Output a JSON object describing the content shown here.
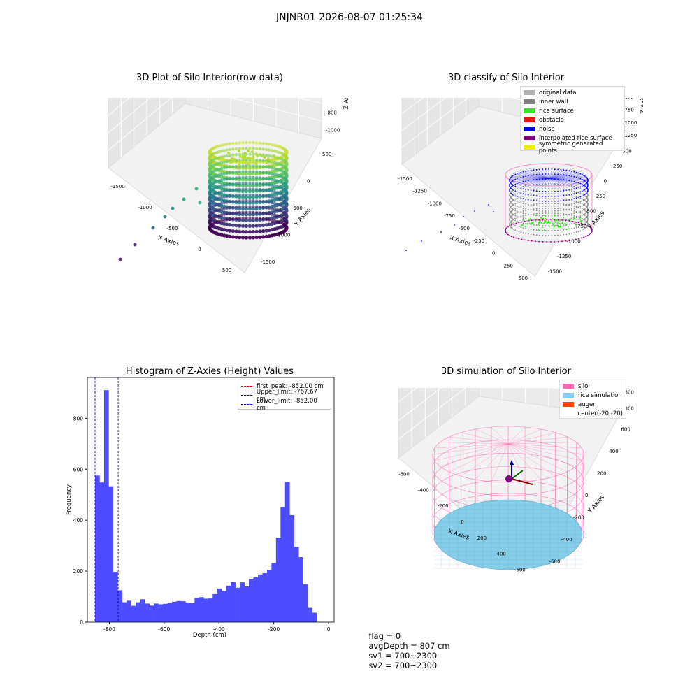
{
  "suptitle": "JNJNR01 2026-08-07 01:25:34",
  "panels": {
    "raw": {
      "title": "3D Plot of Silo Interior(row data)",
      "xlabel": "X Axies",
      "ylabel": "Y Axies",
      "zlabel": "Z Axies (Depth)",
      "x_ticks": [
        "-1500",
        "-1000",
        "-500",
        "0",
        "500"
      ],
      "y_ticks": [
        "500",
        "0",
        "-500",
        "-1000",
        "-1500"
      ],
      "z_ticks": [
        "0",
        "-200",
        "-400",
        "-600",
        "-800",
        "-1000"
      ]
    },
    "classify": {
      "title": "3D classify of Silo Interior",
      "xlabel": "X Axies",
      "ylabel": "Y Axies",
      "zlabel": "Z Axies (Depth)",
      "x_ticks": [
        "-1500",
        "-1250",
        "-1000",
        "-750",
        "-500",
        "-250",
        "0",
        "250",
        "500"
      ],
      "y_ticks": [
        "500",
        "250",
        "0",
        "-250",
        "-500",
        "-750",
        "-1000",
        "-1250",
        "-1500"
      ],
      "z_ticks": [
        "500",
        "250",
        "0",
        "-250",
        "-500",
        "-750",
        "-1000",
        "-1250"
      ],
      "legend": [
        {
          "label": "original data",
          "color": "#b3b3b3"
        },
        {
          "label": "inner wall",
          "color": "#808080"
        },
        {
          "label": "rice surface",
          "color": "#22ee11"
        },
        {
          "label": "obstacle",
          "color": "#ee1111"
        },
        {
          "label": "noise",
          "color": "#0000ee"
        },
        {
          "label": "interpolated rice surface",
          "color": "#800080"
        },
        {
          "label": "symmetric generated points",
          "color": "#eeee00"
        }
      ]
    },
    "simulation": {
      "title": "3D simulation of Silo Interior",
      "xlabel": "X Axies",
      "ylabel": "Y Axies",
      "zlabel": "Z Axies (Depth)",
      "x_ticks": [
        "-600",
        "-400",
        "-200",
        "0",
        "200",
        "400",
        "600"
      ],
      "y_ticks": [
        "600",
        "400",
        "200",
        "0",
        "-200",
        "-400",
        "-600"
      ],
      "z_ticks": [
        "400",
        "200",
        "0",
        "-200",
        "-400",
        "-600",
        "-800"
      ],
      "legend": [
        {
          "label": "silo",
          "color": "#ff69b4"
        },
        {
          "label": "rice simulation",
          "color": "#87ceeb"
        },
        {
          "label": "auger",
          "color": "#ff4500"
        },
        {
          "label": "center(-20,-20)",
          "color": ""
        }
      ]
    }
  },
  "chart_data": {
    "type": "bar",
    "title": "Histogram of Z-Axies (Height) Values",
    "xlabel": "Depth (cm)",
    "ylabel": "Frequency",
    "xlim": [
      -880,
      20
    ],
    "ylim": [
      0,
      960
    ],
    "x_ticks": [
      -800,
      -600,
      -400,
      -200,
      0
    ],
    "y_ticks": [
      0,
      200,
      400,
      600,
      800
    ],
    "bin_width": 16.5,
    "bin_start": -852,
    "values": [
      575,
      548,
      910,
      533,
      197,
      125,
      78,
      84,
      64,
      78,
      90,
      73,
      65,
      73,
      70,
      72,
      75,
      80,
      83,
      82,
      77,
      75,
      95,
      98,
      92,
      93,
      110,
      132,
      122,
      143,
      157,
      135,
      156,
      140,
      168,
      176,
      187,
      192,
      205,
      232,
      332,
      452,
      550,
      420,
      295,
      255,
      148,
      56,
      37
    ],
    "bar_color": "#4d4dff",
    "lines": [
      {
        "label": "first_peak: -852.00 cm",
        "x": -852,
        "color": "#ff0000"
      },
      {
        "label": "Upper_limit: -767.67 cm",
        "x": -767.67,
        "color": "#00008b"
      },
      {
        "label": "Lower_limit: -852.00 cm",
        "x": -852,
        "color": "#0000ff"
      }
    ],
    "legend_position": "top-right"
  },
  "status": {
    "flag": "flag = 0",
    "avg_depth": "avgDepth = 807 cm",
    "sv1": "sv1 = 700~2300",
    "sv2": "sv2 = 700~2300"
  }
}
